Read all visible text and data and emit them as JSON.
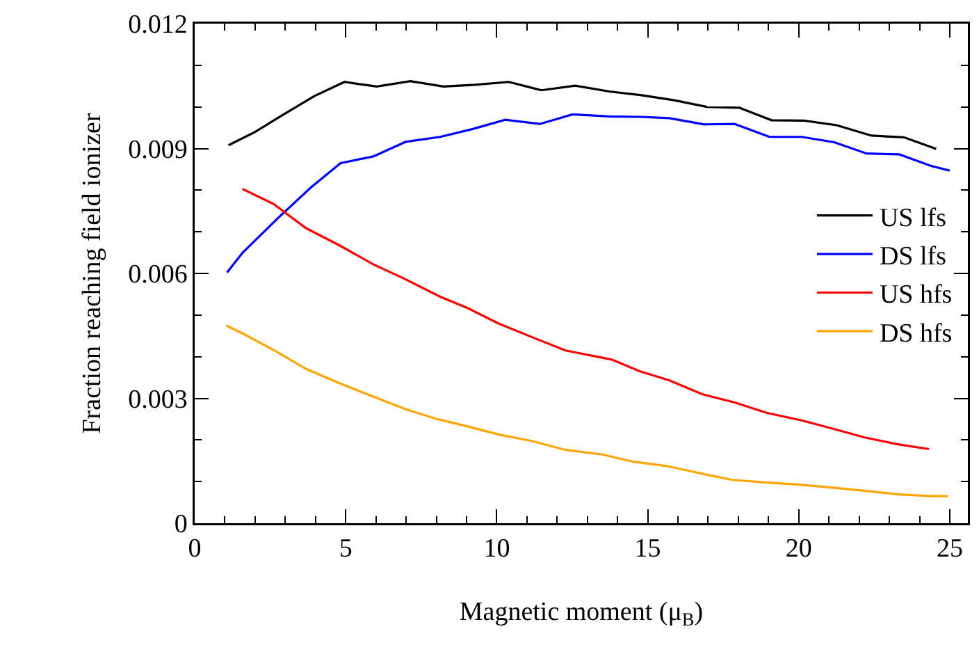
{
  "chart_data": {
    "type": "line",
    "xlabel": "Magnetic moment (μ$_{B}$)",
    "ylabel": "Fraction reaching field ionizer",
    "xlim": [
      0,
      25.6
    ],
    "xticks": [
      0,
      5,
      10,
      15,
      20,
      25
    ],
    "ylim": [
      0,
      0.012
    ],
    "yticks": [
      {
        "value": 0,
        "label": "0"
      },
      0.003,
      0.006,
      0.009,
      0.012
    ],
    "grid": false,
    "legend": "right",
    "marker": "none",
    "line_style": "solid",
    "series": [
      {
        "name": "US lfs",
        "color": "#000000",
        "x": [
          1.12,
          2.0,
          2.9,
          3.96,
          4.96,
          6.03,
          7.14,
          8.24,
          9.28,
          10.4,
          11.48,
          12.6,
          13.73,
          14.8,
          15.88,
          16.96,
          18.03,
          19.1,
          20.18,
          21.26,
          22.41,
          23.48,
          24.55
        ],
        "values": [
          0.00908,
          0.0094,
          0.0098,
          0.01026,
          0.0106,
          0.01049,
          0.01062,
          0.01049,
          0.01053,
          0.0106,
          0.0104,
          0.01051,
          0.01037,
          0.01028,
          0.01016,
          0.01,
          0.00998,
          0.00968,
          0.00967,
          0.00956,
          0.00931,
          0.00927,
          0.00899
        ]
      },
      {
        "name": "DS lfs",
        "color": "#0000ff",
        "x": [
          1.07,
          1.59,
          2.76,
          3.84,
          4.83,
          5.91,
          6.98,
          8.13,
          9.21,
          10.28,
          11.43,
          12.51,
          13.73,
          14.8,
          15.72,
          16.88,
          17.88,
          19.03,
          20.1,
          21.18,
          22.25,
          23.33,
          24.4,
          25.0
        ],
        "values": [
          0.00602,
          0.0065,
          0.00733,
          0.00806,
          0.00865,
          0.00881,
          0.00916,
          0.00928,
          0.00947,
          0.00969,
          0.00959,
          0.00982,
          0.00977,
          0.00976,
          0.00973,
          0.00958,
          0.00959,
          0.00928,
          0.00928,
          0.00915,
          0.00888,
          0.00886,
          0.00858,
          0.00847
        ]
      },
      {
        "name": "US hfs",
        "color": "#ff0000",
        "x": [
          1.58,
          2.61,
          3.68,
          4.83,
          5.91,
          6.98,
          8.13,
          9.06,
          10.05,
          11.2,
          12.28,
          13.81,
          14.73,
          15.72,
          16.8,
          17.88,
          18.95,
          20.1,
          21.18,
          22.18,
          23.25,
          24.32
        ],
        "values": [
          0.00803,
          0.00767,
          0.00709,
          0.00666,
          0.00622,
          0.00586,
          0.00544,
          0.00516,
          0.0048,
          0.00446,
          0.00415,
          0.00393,
          0.00365,
          0.00343,
          0.0031,
          0.0029,
          0.00265,
          0.00247,
          0.00226,
          0.00206,
          0.0019,
          0.00178
        ]
      },
      {
        "name": "DS hfs",
        "color": "#ffa500",
        "x": [
          1.04,
          1.61,
          2.69,
          3.68,
          4.83,
          5.91,
          6.98,
          7.98,
          9.06,
          10.13,
          11.13,
          12.28,
          13.5,
          14.5,
          15.65,
          16.73,
          17.8,
          18.88,
          19.95,
          21.18,
          22.18,
          23.33,
          24.4,
          24.94
        ],
        "values": [
          0.00475,
          0.00455,
          0.00413,
          0.00371,
          0.00335,
          0.00304,
          0.00274,
          0.00251,
          0.00232,
          0.00212,
          0.00198,
          0.00176,
          0.00165,
          0.00148,
          0.00137,
          0.0012,
          0.00104,
          0.00098,
          0.00093,
          0.00085,
          0.00078,
          0.00069,
          0.00065,
          0.00065
        ]
      }
    ]
  }
}
